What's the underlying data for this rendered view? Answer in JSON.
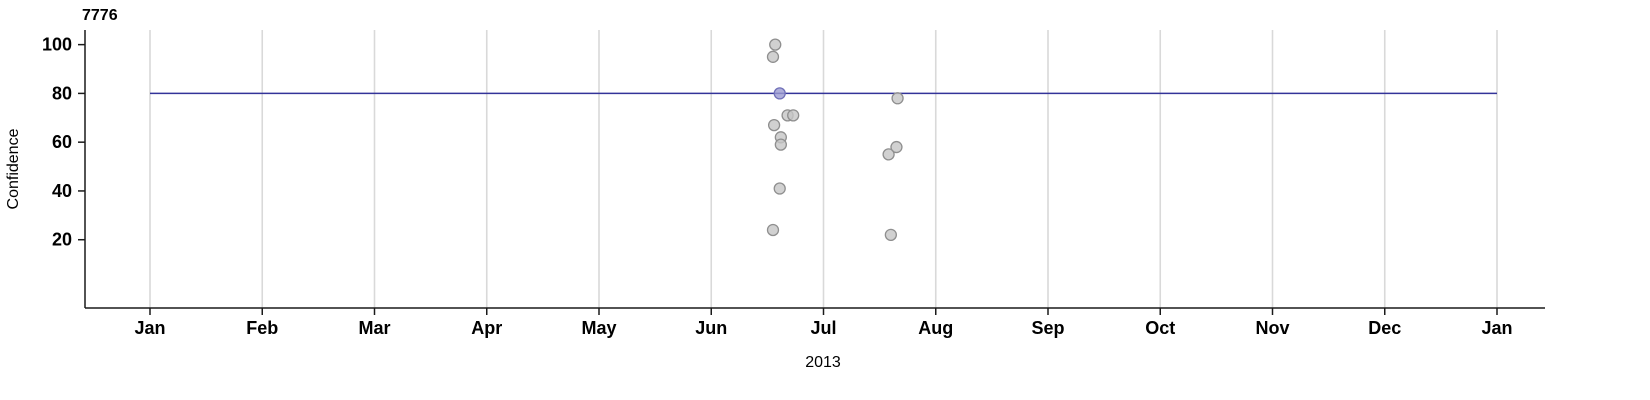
{
  "chart_data": {
    "type": "scatter",
    "title": "7776",
    "xlabel": "2013",
    "ylabel": "Confidence",
    "x_tick_labels": [
      "Jan",
      "Feb",
      "Mar",
      "Apr",
      "May",
      "Jun",
      "Jul",
      "Aug",
      "Sep",
      "Oct",
      "Nov",
      "Dec",
      "Jan"
    ],
    "y_ticks": [
      20,
      40,
      60,
      80,
      100
    ],
    "ylim": [
      -8,
      106
    ],
    "grid": "vertical-only",
    "legend": "none",
    "reference_line": {
      "y": 80,
      "color": "#333399"
    },
    "colors": {
      "grid": "#d9d9d9",
      "axis": "#1a1a1a",
      "point_fill": "#c6c6c6",
      "point_stroke": "#8f8f8f",
      "highlight_fill": "#9a9ad1",
      "highlight_stroke": "#7070b8"
    },
    "points": [
      {
        "x_month": 5.57,
        "y": 100
      },
      {
        "x_month": 5.55,
        "y": 95
      },
      {
        "x_month": 5.61,
        "y": 80,
        "highlight": true
      },
      {
        "x_month": 5.68,
        "y": 71
      },
      {
        "x_month": 5.73,
        "y": 71
      },
      {
        "x_month": 5.56,
        "y": 67
      },
      {
        "x_month": 5.62,
        "y": 62
      },
      {
        "x_month": 5.62,
        "y": 59
      },
      {
        "x_month": 5.61,
        "y": 41
      },
      {
        "x_month": 5.55,
        "y": 24
      },
      {
        "x_month": 6.66,
        "y": 78
      },
      {
        "x_month": 6.65,
        "y": 58
      },
      {
        "x_month": 6.58,
        "y": 55
      },
      {
        "x_month": 6.6,
        "y": 22
      }
    ]
  }
}
